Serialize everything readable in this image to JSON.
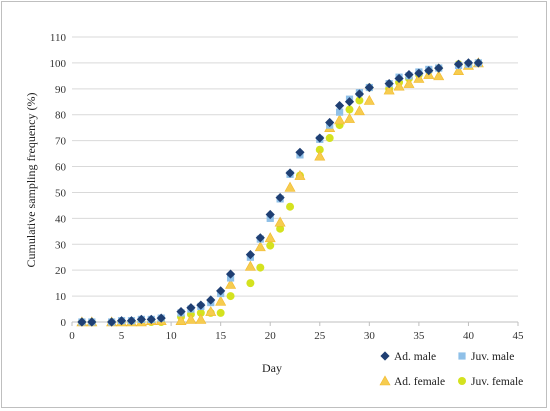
{
  "chart_data": {
    "type": "scatter",
    "xlabel": "Day",
    "ylabel": "Cumulative sampling frequency (%)",
    "xlim": [
      0,
      45
    ],
    "ylim": [
      0,
      110
    ],
    "xticks": [
      0,
      5,
      10,
      15,
      20,
      25,
      30,
      35,
      40,
      45
    ],
    "yticks": [
      0,
      10,
      20,
      30,
      40,
      50,
      60,
      70,
      80,
      90,
      100,
      110
    ],
    "grid": "horizontal",
    "legend_position": "bottom-right",
    "series": [
      {
        "name": "Ad. male",
        "marker": "diamond",
        "color": "#1f3f73",
        "points": [
          [
            1,
            0
          ],
          [
            2,
            0
          ],
          [
            4,
            0
          ],
          [
            5,
            0.5
          ],
          [
            6,
            0.5
          ],
          [
            7,
            1
          ],
          [
            8,
            1
          ],
          [
            9,
            1.5
          ],
          [
            11,
            4
          ],
          [
            12,
            5.5
          ],
          [
            13,
            6.5
          ],
          [
            14,
            8.5
          ],
          [
            15,
            12
          ],
          [
            16,
            18.5
          ],
          [
            18,
            26
          ],
          [
            19,
            32.5
          ],
          [
            20,
            41.5
          ],
          [
            21,
            48
          ],
          [
            22,
            57.5
          ],
          [
            23,
            65.5
          ],
          [
            25,
            71
          ],
          [
            26,
            77
          ],
          [
            27,
            83.5
          ],
          [
            28,
            85
          ],
          [
            29,
            88
          ],
          [
            30,
            90.5
          ],
          [
            32,
            92
          ],
          [
            33,
            94
          ],
          [
            34,
            95.5
          ],
          [
            35,
            96
          ],
          [
            36,
            97
          ],
          [
            37,
            98
          ],
          [
            39,
            99.5
          ],
          [
            40,
            100
          ],
          [
            41,
            100
          ]
        ]
      },
      {
        "name": "Juv. male",
        "marker": "square",
        "color": "#8fc0e8",
        "points": [
          [
            1,
            0
          ],
          [
            2,
            0
          ],
          [
            4,
            0
          ],
          [
            5,
            0.5
          ],
          [
            6,
            0.5
          ],
          [
            7,
            1
          ],
          [
            8,
            1
          ],
          [
            9,
            1.5
          ],
          [
            11,
            3.5
          ],
          [
            12,
            5
          ],
          [
            13,
            6
          ],
          [
            14,
            7.5
          ],
          [
            15,
            11
          ],
          [
            16,
            17
          ],
          [
            18,
            25
          ],
          [
            19,
            32
          ],
          [
            20,
            40
          ],
          [
            21,
            47.5
          ],
          [
            22,
            57
          ],
          [
            23,
            64.5
          ],
          [
            25,
            70.5
          ],
          [
            26,
            76
          ],
          [
            27,
            81
          ],
          [
            28,
            86
          ],
          [
            29,
            88.5
          ],
          [
            30,
            90.5
          ],
          [
            32,
            92
          ],
          [
            33,
            94.5
          ],
          [
            34,
            95
          ],
          [
            35,
            96.5
          ],
          [
            36,
            97.5
          ],
          [
            37,
            98
          ],
          [
            39,
            99
          ],
          [
            40,
            99.5
          ],
          [
            41,
            100
          ]
        ]
      },
      {
        "name": "Ad. female",
        "marker": "triangle",
        "color": "#f6cc4f",
        "points": [
          [
            1,
            0
          ],
          [
            2,
            0
          ],
          [
            4,
            0
          ],
          [
            5,
            0
          ],
          [
            6,
            0
          ],
          [
            7,
            0
          ],
          [
            8,
            0.5
          ],
          [
            9,
            0.5
          ],
          [
            11,
            0.5
          ],
          [
            12,
            1
          ],
          [
            13,
            1
          ],
          [
            14,
            4
          ],
          [
            15,
            8
          ],
          [
            16,
            14.5
          ],
          [
            18,
            21.5
          ],
          [
            19,
            29
          ],
          [
            20,
            32.5
          ],
          [
            21,
            38.5
          ],
          [
            22,
            52
          ],
          [
            23,
            56.5
          ],
          [
            25,
            64
          ],
          [
            26,
            75
          ],
          [
            27,
            78
          ],
          [
            28,
            78.5
          ],
          [
            29,
            81.5
          ],
          [
            30,
            85.5
          ],
          [
            32,
            89.5
          ],
          [
            33,
            91
          ],
          [
            34,
            92
          ],
          [
            35,
            94
          ],
          [
            36,
            95.5
          ],
          [
            37,
            95
          ],
          [
            39,
            97
          ],
          [
            40,
            99
          ],
          [
            41,
            100
          ]
        ]
      },
      {
        "name": "Juv. female",
        "marker": "circle",
        "color": "#d4e21f",
        "points": [
          [
            1,
            0
          ],
          [
            2,
            0
          ],
          [
            4,
            0
          ],
          [
            5,
            0
          ],
          [
            6,
            0
          ],
          [
            7,
            0
          ],
          [
            8,
            0
          ],
          [
            9,
            0
          ],
          [
            11,
            2
          ],
          [
            12,
            3
          ],
          [
            13,
            3.5
          ],
          [
            14,
            3.5
          ],
          [
            15,
            3.5
          ],
          [
            16,
            10
          ],
          [
            18,
            15
          ],
          [
            19,
            21
          ],
          [
            20,
            29.5
          ],
          [
            21,
            36
          ],
          [
            22,
            44.5
          ],
          [
            23,
            56.5
          ],
          [
            25,
            66.5
          ],
          [
            26,
            71
          ],
          [
            27,
            76
          ],
          [
            28,
            82
          ],
          [
            29,
            85.5
          ],
          [
            30,
            90.5
          ],
          [
            32,
            90
          ],
          [
            33,
            92.5
          ],
          [
            34,
            94
          ],
          [
            35,
            95.5
          ],
          [
            36,
            97
          ],
          [
            37,
            98
          ],
          [
            39,
            99.5
          ],
          [
            40,
            99
          ],
          [
            41,
            100
          ]
        ]
      }
    ]
  }
}
